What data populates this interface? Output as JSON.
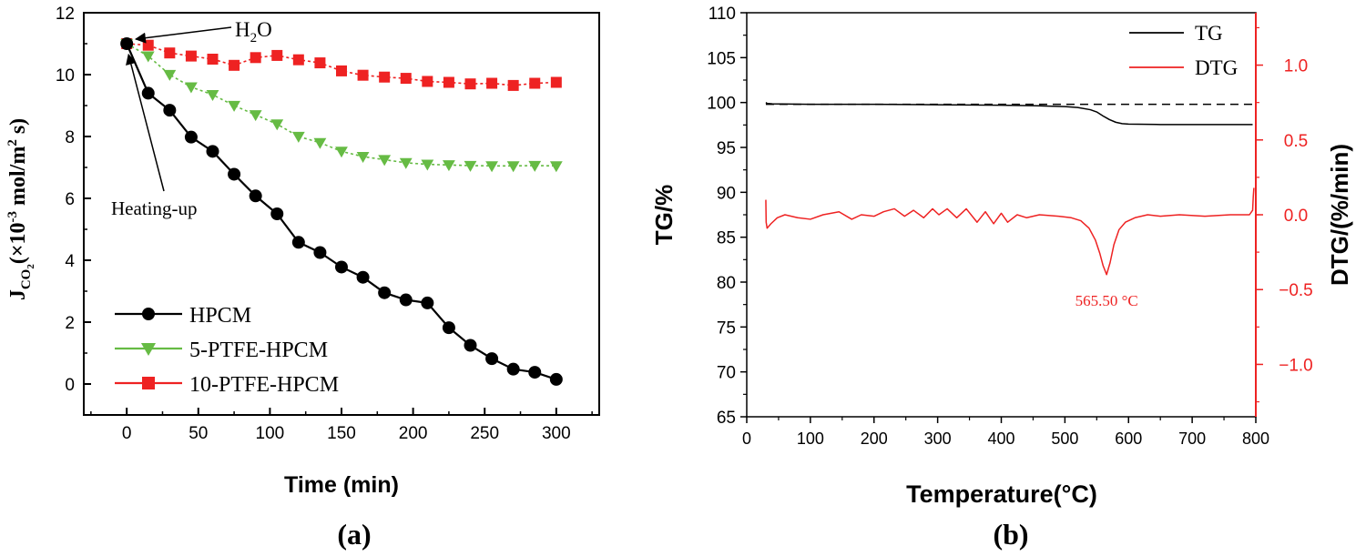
{
  "chart_data": [
    {
      "panel_label": "(a)",
      "type": "line",
      "xlabel": "Time (min)",
      "ylabel": "J",
      "ylabel_sub": "CO",
      "ylabel_sub2": "2",
      "ylabel_rest1": "(×10",
      "ylabel_exp": "-3",
      "ylabel_rest2": " mol/m",
      "ylabel_exp2": "2",
      "ylabel_rest3": " s)",
      "xlim": [
        -30,
        330
      ],
      "ylim": [
        -1,
        12
      ],
      "xticks": [
        0,
        50,
        100,
        150,
        200,
        250,
        300
      ],
      "yticks": [
        0,
        2,
        4,
        6,
        8,
        10,
        12
      ],
      "legend_position": "bottom-left",
      "annotations": [
        {
          "text": "H",
          "sub": "2",
          "rest": "O",
          "target": [
            0,
            11.0
          ]
        },
        {
          "text": "Heating-up",
          "target": [
            0,
            11.0
          ]
        }
      ],
      "series": [
        {
          "name": "HPCM",
          "color": "#000000",
          "marker": "circle",
          "x": [
            0,
            15,
            30,
            45,
            60,
            75,
            90,
            105,
            120,
            135,
            150,
            165,
            180,
            195,
            210,
            225,
            240,
            255,
            270,
            285,
            300
          ],
          "y": [
            11.0,
            9.4,
            8.85,
            7.98,
            7.52,
            6.78,
            6.08,
            5.5,
            4.58,
            4.25,
            3.78,
            3.45,
            2.95,
            2.72,
            2.62,
            1.82,
            1.25,
            0.82,
            0.48,
            0.38,
            0.15
          ]
        },
        {
          "name": "5-PTFE-HPCM",
          "color": "#66bb44",
          "marker": "triangle-down",
          "x": [
            0,
            15,
            30,
            45,
            60,
            75,
            90,
            105,
            120,
            135,
            150,
            165,
            180,
            195,
            210,
            225,
            240,
            255,
            270,
            285,
            300
          ],
          "y": [
            11.0,
            10.6,
            10.0,
            9.6,
            9.35,
            9.0,
            8.7,
            8.4,
            8.0,
            7.8,
            7.52,
            7.35,
            7.25,
            7.15,
            7.1,
            7.08,
            7.06,
            7.05,
            7.05,
            7.06,
            7.05
          ]
        },
        {
          "name": "10-PTFE-HPCM",
          "color": "#ee2222",
          "marker": "square",
          "x": [
            0,
            15,
            30,
            45,
            60,
            75,
            90,
            105,
            120,
            135,
            150,
            165,
            180,
            195,
            210,
            225,
            240,
            255,
            270,
            285,
            300
          ],
          "y": [
            11.0,
            10.95,
            10.7,
            10.6,
            10.5,
            10.3,
            10.55,
            10.62,
            10.48,
            10.38,
            10.12,
            9.98,
            9.92,
            9.88,
            9.78,
            9.75,
            9.7,
            9.72,
            9.65,
            9.72,
            9.75
          ]
        }
      ]
    },
    {
      "panel_label": "(b)",
      "type": "line",
      "xlabel": "Temperature(°C)",
      "ylabel": "TG/%",
      "ylabel_right": "DTG/(%/min)",
      "xlim": [
        0,
        800
      ],
      "ylim": [
        65,
        110
      ],
      "ylim_right": [
        -1.35,
        1.35
      ],
      "xticks": [
        0,
        100,
        200,
        300,
        400,
        500,
        600,
        700,
        800
      ],
      "yticks": [
        65,
        70,
        75,
        80,
        85,
        90,
        95,
        100,
        105,
        110
      ],
      "yticks_right": [
        1.0,
        0.5,
        0.0,
        -0.5,
        -1.0
      ],
      "yticks_right_labels": [
        "1.0",
        "0.5",
        "0.0",
        "−0.5",
        "−1.0"
      ],
      "legend_position": "top-right",
      "reference_line": {
        "style": "dashed",
        "y": 99.8
      },
      "peak_annotation": {
        "text": "565.50 °C",
        "x": 565.5,
        "y": -0.4
      },
      "colors": {
        "tg": "#000000",
        "dtg": "#ee2222"
      },
      "series": [
        {
          "name": "TG",
          "axis": "left",
          "x": [
            30,
            32,
            40,
            100,
            200,
            300,
            400,
            450,
            500,
            520,
            540,
            550,
            560,
            570,
            580,
            590,
            600,
            650,
            700,
            750,
            795
          ],
          "y": [
            100.0,
            99.9,
            99.85,
            99.8,
            99.8,
            99.75,
            99.7,
            99.65,
            99.55,
            99.45,
            99.2,
            98.95,
            98.5,
            98.1,
            97.8,
            97.65,
            97.6,
            97.55,
            97.55,
            97.55,
            97.55
          ]
        },
        {
          "name": "DTG",
          "axis": "right",
          "x": [
            30,
            30.5,
            32,
            38,
            48,
            60,
            80,
            100,
            120,
            145,
            165,
            180,
            200,
            215,
            232,
            248,
            262,
            278,
            292,
            302,
            315,
            330,
            345,
            362,
            375,
            388,
            400,
            410,
            425,
            440,
            460,
            490,
            510,
            525,
            538,
            548,
            555,
            560,
            565.5,
            571,
            577,
            585,
            595,
            610,
            630,
            650,
            680,
            720,
            760,
            790,
            795,
            796,
            797
          ],
          "y": [
            0.1,
            -0.05,
            -0.09,
            -0.06,
            -0.02,
            0.0,
            -0.02,
            -0.03,
            0.0,
            0.02,
            -0.03,
            0.0,
            -0.01,
            0.02,
            0.04,
            -0.01,
            0.03,
            -0.02,
            0.04,
            0.0,
            0.04,
            -0.02,
            0.04,
            -0.05,
            0.02,
            -0.06,
            0.01,
            -0.05,
            0.0,
            -0.02,
            0.0,
            -0.01,
            -0.02,
            -0.04,
            -0.09,
            -0.17,
            -0.26,
            -0.34,
            -0.4,
            -0.32,
            -0.2,
            -0.1,
            -0.05,
            -0.02,
            0.0,
            -0.01,
            0.0,
            -0.01,
            0.0,
            0.0,
            0.03,
            0.12,
            0.18
          ]
        }
      ]
    }
  ]
}
